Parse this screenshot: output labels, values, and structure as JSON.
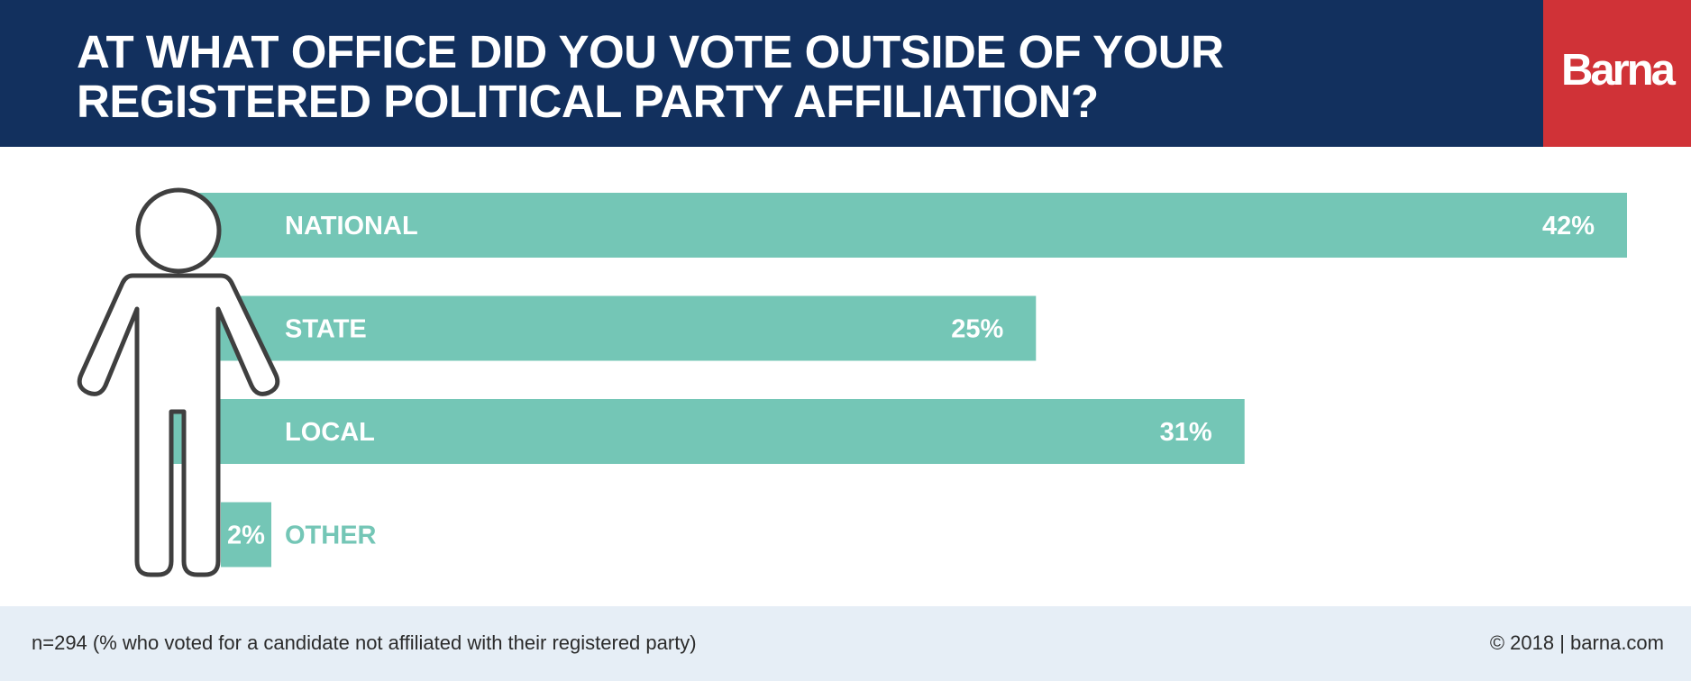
{
  "header": {
    "title_lines": [
      "AT WHAT OFFICE DID YOU VOTE OUTSIDE OF YOUR",
      "REGISTERED POLITICAL PARTY AFFILIATION?"
    ],
    "logo_text": "Barna"
  },
  "footer": {
    "note": "n=294 (% who voted for a candidate not affiliated with their registered party)",
    "credit": "© 2018 | barna.com"
  },
  "colors": {
    "header_bg": "#12305e",
    "logo_bg": "#d03237",
    "bar": "#74c6b6",
    "figure_stroke": "#3f3f3f",
    "footer_bg": "#e6eef6"
  },
  "icons": {
    "figure": "person-outline-icon"
  },
  "chart_data": {
    "type": "bar",
    "orientation": "horizontal",
    "categories": [
      "NATIONAL",
      "STATE",
      "LOCAL",
      "OTHER"
    ],
    "values": [
      42,
      25,
      31,
      2
    ],
    "value_labels": [
      "42%",
      "25%",
      "31%",
      "2%"
    ],
    "unit": "%",
    "xlim": [
      0,
      42
    ],
    "grid": false,
    "legend": "none"
  }
}
